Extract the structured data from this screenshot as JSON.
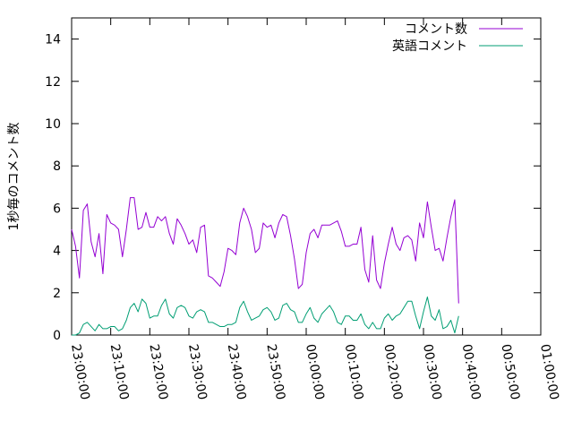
{
  "chart_data": {
    "type": "line",
    "title": "",
    "xlabel": "",
    "ylabel": "1秒毎のコメント数",
    "ylim": [
      0,
      15
    ],
    "yticks": [
      0,
      2,
      4,
      6,
      8,
      10,
      12,
      14
    ],
    "xticks": [
      "23:00:00",
      "23:10:00",
      "23:20:00",
      "23:30:00",
      "23:40:00",
      "23:50:00",
      "00:00:00",
      "00:10:00",
      "00:20:00",
      "00:30:00",
      "00:40:00",
      "00:50:00",
      "01:00:00"
    ],
    "x_start": "23:00:00",
    "x_end": "01:00:00",
    "x_step_minutes": 1,
    "grid": false,
    "legend_position": "top-right",
    "series": [
      {
        "name": "コメント数",
        "color": "#9400d3",
        "values": [
          5.0,
          4.2,
          2.7,
          5.9,
          6.2,
          4.4,
          3.7,
          4.8,
          2.9,
          5.7,
          5.3,
          5.2,
          5.0,
          3.7,
          5.0,
          6.5,
          6.5,
          5.0,
          5.1,
          5.8,
          5.1,
          5.1,
          5.6,
          5.4,
          5.6,
          4.8,
          4.3,
          5.5,
          5.2,
          4.8,
          4.3,
          4.5,
          3.9,
          5.1,
          5.2,
          2.8,
          2.7,
          2.5,
          2.3,
          3.0,
          4.1,
          4.0,
          3.8,
          5.3,
          6.0,
          5.6,
          5.0,
          3.9,
          4.1,
          5.3,
          5.1,
          5.2,
          4.6,
          5.3,
          5.7,
          5.6,
          4.7,
          3.6,
          2.2,
          2.4,
          3.9,
          4.8,
          5.0,
          4.6,
          5.2,
          5.2,
          5.2,
          5.3,
          5.4,
          4.9,
          4.2,
          4.2,
          4.3,
          4.3,
          5.1,
          3.1,
          2.5,
          4.7,
          2.6,
          2.2,
          3.4,
          4.3,
          5.1,
          4.3,
          4.0,
          4.6,
          4.7,
          4.5,
          3.5,
          5.3,
          4.6,
          6.3,
          5.1,
          4.0,
          4.1,
          3.5,
          4.6,
          5.6,
          6.4,
          1.5
        ]
      },
      {
        "name": "英語コメント",
        "color": "#009e73",
        "values": [
          0.0,
          0.0,
          0.1,
          0.5,
          0.6,
          0.4,
          0.2,
          0.5,
          0.3,
          0.3,
          0.4,
          0.4,
          0.2,
          0.3,
          0.7,
          1.3,
          1.5,
          1.1,
          1.7,
          1.5,
          0.8,
          0.9,
          0.9,
          1.4,
          1.7,
          1.0,
          0.8,
          1.3,
          1.4,
          1.3,
          0.9,
          0.8,
          1.1,
          1.2,
          1.1,
          0.6,
          0.6,
          0.5,
          0.4,
          0.4,
          0.5,
          0.5,
          0.6,
          1.3,
          1.6,
          1.1,
          0.7,
          0.8,
          0.9,
          1.2,
          1.3,
          1.1,
          0.7,
          0.8,
          1.4,
          1.5,
          1.2,
          1.1,
          0.6,
          0.6,
          1.0,
          1.3,
          0.8,
          0.6,
          1.0,
          1.2,
          1.4,
          1.1,
          0.6,
          0.5,
          0.9,
          0.9,
          0.7,
          0.7,
          1.0,
          0.5,
          0.3,
          0.6,
          0.3,
          0.3,
          0.8,
          1.0,
          0.7,
          0.9,
          1.0,
          1.3,
          1.6,
          1.6,
          0.9,
          0.3,
          1.1,
          1.8,
          0.9,
          0.7,
          1.2,
          0.3,
          0.4,
          0.7,
          0.1,
          0.9
        ]
      }
    ]
  }
}
